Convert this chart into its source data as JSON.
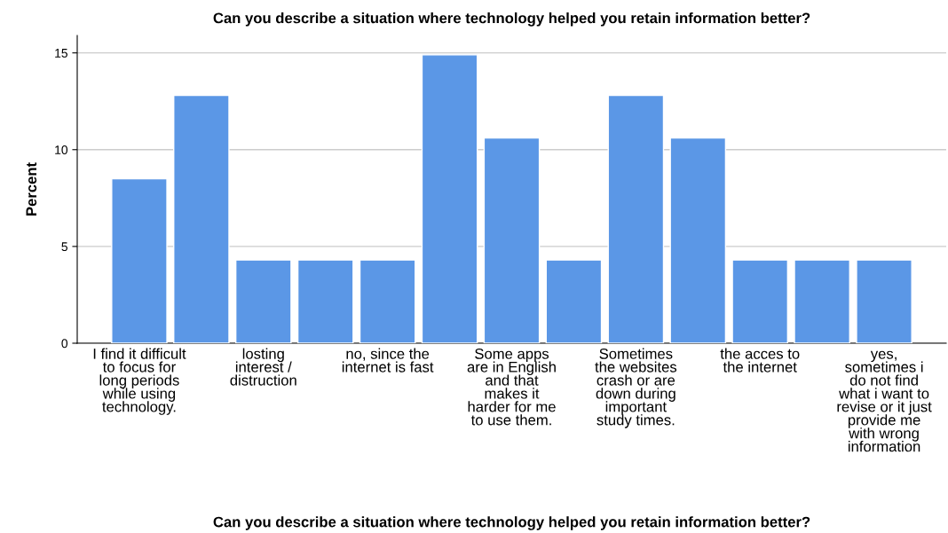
{
  "chart_data": {
    "type": "bar",
    "title": "Can you describe a situation where technology helped you retain information better?",
    "xlabel": "Can you describe a situation where technology helped you retain information better?",
    "ylabel": "Percent",
    "categories": [
      "I find it difficult\nto focus for\nlong periods\nwhile using\ntechnology.",
      null,
      "losting\ninterest /\ndistruction",
      null,
      "no, since the\ninternet is fast",
      null,
      "Some apps\nare in English\nand that\nmakes it\nharder for me\nto use them.",
      null,
      "Sometimes\nthe websites\ncrash or are\ndown during\nimportant\nstudy times.",
      null,
      "the acces to\nthe internet",
      null,
      "yes,\nsometimes i\ndo not find\nwhat i want to\nrevise or it just\nprovide me\nwith wrong\ninformation"
    ],
    "values": [
      8.5,
      12.8,
      4.3,
      4.3,
      4.3,
      14.9,
      10.6,
      4.3,
      12.8,
      10.6,
      4.3,
      4.3,
      4.3
    ],
    "color": "#5b97e6",
    "ylim": [
      0,
      15.9
    ],
    "yticks": [
      0,
      5,
      10,
      15
    ],
    "grid": "y"
  }
}
